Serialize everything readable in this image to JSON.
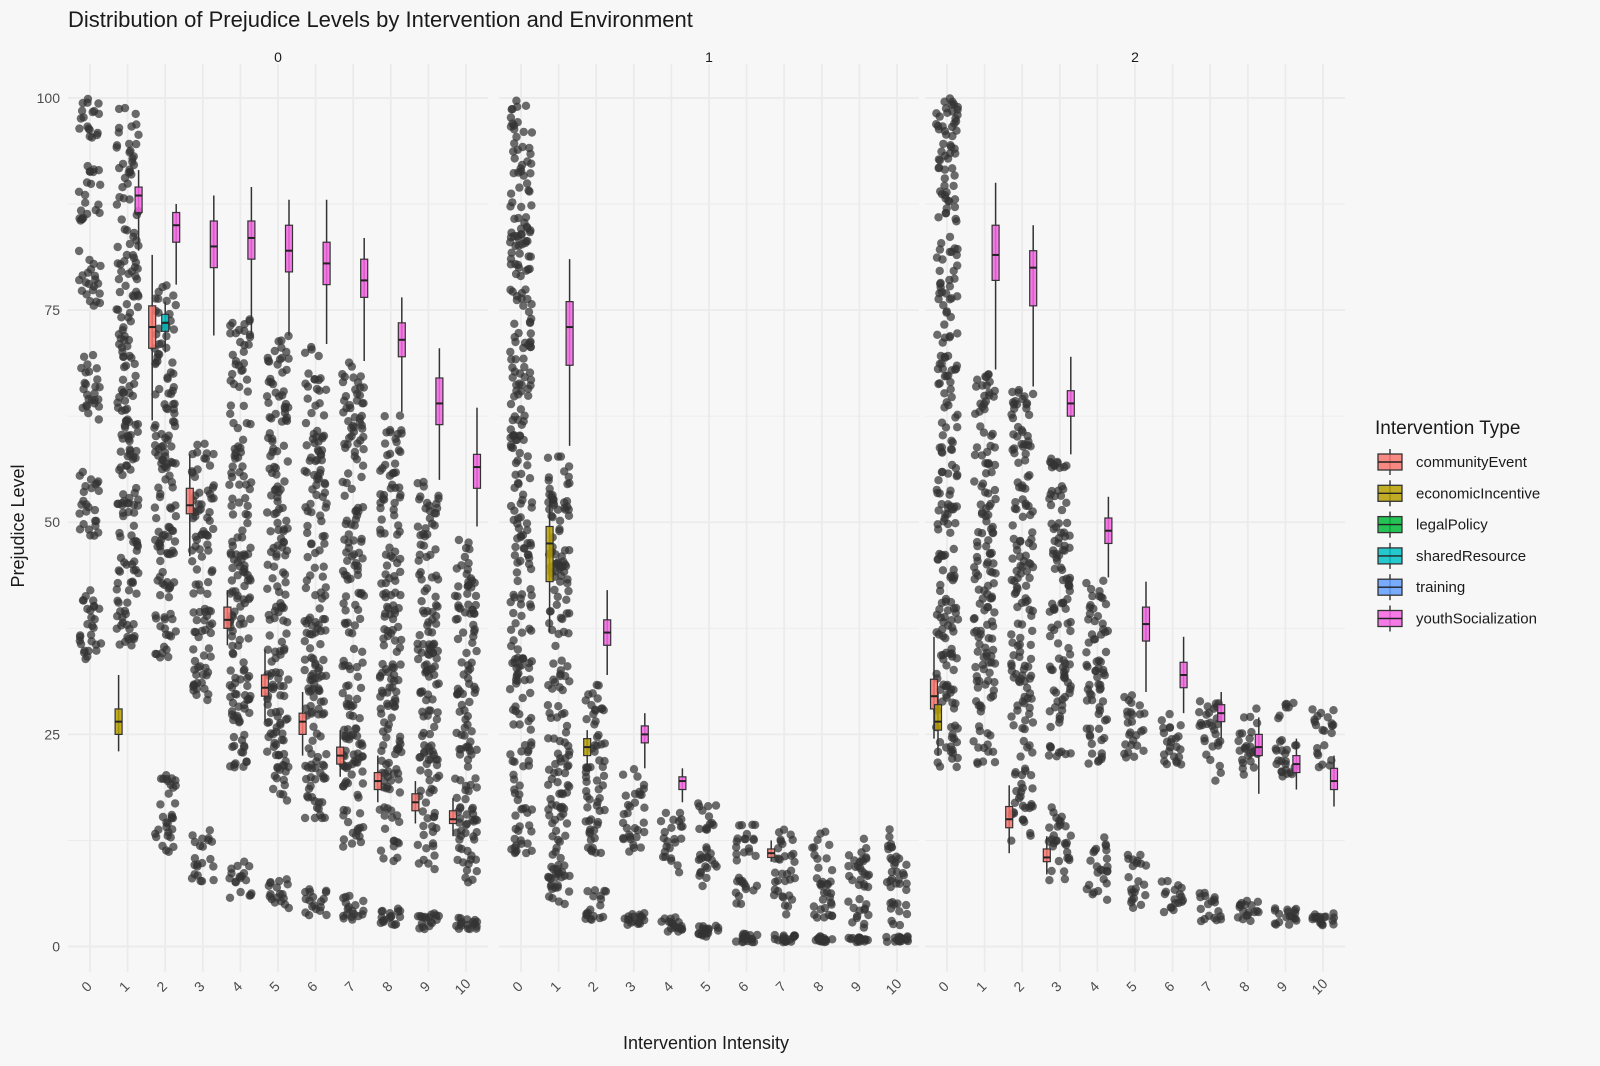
{
  "chart_data": {
    "type": "box",
    "title": "Distribution of Prejudice Levels by Intervention and Environment",
    "xlabel": "Intervention Intensity",
    "ylabel": "Prejudice Level",
    "ylim": [
      -3,
      104
    ],
    "yticks": [
      0,
      25,
      50,
      75,
      100
    ],
    "x_categories": [
      "0",
      "1",
      "2",
      "3",
      "4",
      "5",
      "6",
      "7",
      "8",
      "9",
      "10"
    ],
    "grid": true,
    "legend": {
      "title": "Intervention Type",
      "placement": "right",
      "entries": [
        {
          "name": "communityEvent",
          "color": "#F8766D"
        },
        {
          "name": "economicIncentive",
          "color": "#B79F00"
        },
        {
          "name": "legalPolicy",
          "color": "#00BA38"
        },
        {
          "name": "sharedResource",
          "color": "#00BFC4"
        },
        {
          "name": "training",
          "color": "#619CFF"
        },
        {
          "name": "youthSocialization",
          "color": "#F564E3"
        }
      ]
    },
    "panels": [
      {
        "facet": "0",
        "boxes": [
          {
            "x": "1",
            "type": "economicIncentive",
            "q1": 25,
            "median": 26.5,
            "q3": 28,
            "lo": 23,
            "hi": 32
          },
          {
            "x": "1",
            "type": "youthSocialization",
            "q1": 86.5,
            "median": 88.5,
            "q3": 89.5,
            "lo": 82,
            "hi": 91.5
          },
          {
            "x": "2",
            "type": "communityEvent",
            "q1": 70.5,
            "median": 73,
            "q3": 75.5,
            "lo": 62,
            "hi": 81.5
          },
          {
            "x": "2",
            "type": "sharedResource",
            "q1": 72.5,
            "median": 73.5,
            "q3": 74.5,
            "lo": 70,
            "hi": 76
          },
          {
            "x": "2",
            "type": "youthSocialization",
            "q1": 83,
            "median": 85,
            "q3": 86.5,
            "lo": 78,
            "hi": 87.5
          },
          {
            "x": "3",
            "type": "communityEvent",
            "q1": 51,
            "median": 52,
            "q3": 54,
            "lo": 46,
            "hi": 58
          },
          {
            "x": "3",
            "type": "youthSocialization",
            "q1": 80,
            "median": 82.5,
            "q3": 85.5,
            "lo": 72,
            "hi": 88.5
          },
          {
            "x": "4",
            "type": "communityEvent",
            "q1": 37.5,
            "median": 38.5,
            "q3": 40,
            "lo": 35.5,
            "hi": 42
          },
          {
            "x": "4",
            "type": "youthSocialization",
            "q1": 81,
            "median": 83.5,
            "q3": 85.5,
            "lo": 72,
            "hi": 89.5
          },
          {
            "x": "5",
            "type": "communityEvent",
            "q1": 29.5,
            "median": 30.5,
            "q3": 32,
            "lo": 26.5,
            "hi": 35
          },
          {
            "x": "5",
            "type": "youthSocialization",
            "q1": 79.5,
            "median": 82,
            "q3": 85,
            "lo": 72,
            "hi": 88
          },
          {
            "x": "6",
            "type": "communityEvent",
            "q1": 25,
            "median": 26.5,
            "q3": 27.5,
            "lo": 22.5,
            "hi": 30
          },
          {
            "x": "6",
            "type": "youthSocialization",
            "q1": 78,
            "median": 80.5,
            "q3": 83,
            "lo": 71,
            "hi": 88
          },
          {
            "x": "7",
            "type": "communityEvent",
            "q1": 21.5,
            "median": 22.5,
            "q3": 23.5,
            "lo": 20,
            "hi": 25.5
          },
          {
            "x": "7",
            "type": "youthSocialization",
            "q1": 76.5,
            "median": 78.5,
            "q3": 81,
            "lo": 69,
            "hi": 83.5
          },
          {
            "x": "8",
            "type": "communityEvent",
            "q1": 18.5,
            "median": 19.5,
            "q3": 20.5,
            "lo": 17,
            "hi": 22.5
          },
          {
            "x": "8",
            "type": "youthSocialization",
            "q1": 69.5,
            "median": 71.5,
            "q3": 73.5,
            "lo": 63,
            "hi": 76.5
          },
          {
            "x": "9",
            "type": "communityEvent",
            "q1": 16,
            "median": 17,
            "q3": 18,
            "lo": 14.5,
            "hi": 19.5
          },
          {
            "x": "9",
            "type": "youthSocialization",
            "q1": 61.5,
            "median": 64,
            "q3": 67,
            "lo": 55,
            "hi": 70.5
          },
          {
            "x": "10",
            "type": "communityEvent",
            "q1": 14.5,
            "median": 15,
            "q3": 16,
            "lo": 13,
            "hi": 17.5
          },
          {
            "x": "10",
            "type": "youthSocialization",
            "q1": 54,
            "median": 56.5,
            "q3": 58,
            "lo": 49.5,
            "hi": 63.5
          }
        ],
        "point_clusters": [
          {
            "x": 0,
            "lo": 32,
            "hi": 100,
            "groups": [
              [
                95,
                100
              ],
              [
                85,
                92
              ],
              [
                75,
                82
              ],
              [
                62,
                70
              ],
              [
                48,
                56
              ],
              [
                33,
                42
              ]
            ]
          },
          {
            "x": 1,
            "lo": 30,
            "hi": 99,
            "groups": [
              [
                35,
                99
              ]
            ]
          },
          {
            "x": 2,
            "lo": 11,
            "hi": 78,
            "groups": [
              [
                34,
                78
              ],
              [
                11,
                21
              ]
            ]
          },
          {
            "x": 3,
            "lo": 7,
            "hi": 60,
            "groups": [
              [
                29,
                60
              ],
              [
                7,
                14
              ]
            ]
          },
          {
            "x": 4,
            "lo": 5.5,
            "hi": 74,
            "groups": [
              [
                21,
                74
              ],
              [
                5.5,
                10
              ]
            ]
          },
          {
            "x": 5,
            "lo": 4.5,
            "hi": 72,
            "groups": [
              [
                16.5,
                72
              ],
              [
                4.5,
                8
              ]
            ]
          },
          {
            "x": 6,
            "lo": 3.5,
            "hi": 71,
            "groups": [
              [
                15,
                71
              ],
              [
                3.5,
                7
              ]
            ]
          },
          {
            "x": 7,
            "lo": 3,
            "hi": 69,
            "groups": [
              [
                11.5,
                69
              ],
              [
                3,
                6
              ]
            ]
          },
          {
            "x": 8,
            "lo": 2.5,
            "hi": 63,
            "groups": [
              [
                10,
                63
              ],
              [
                2.5,
                4.5
              ]
            ]
          },
          {
            "x": 9,
            "lo": 2,
            "hi": 55,
            "groups": [
              [
                9,
                55
              ],
              [
                2,
                4
              ]
            ]
          },
          {
            "x": 10,
            "lo": 2,
            "hi": 49,
            "groups": [
              [
                7.5,
                49
              ],
              [
                2,
                3.5
              ]
            ]
          }
        ]
      },
      {
        "facet": "1",
        "boxes": [
          {
            "x": "1",
            "type": "economicIncentive",
            "q1": 43,
            "median": 47.5,
            "q3": 49.5,
            "lo": 37,
            "hi": 53
          },
          {
            "x": "1",
            "type": "youthSocialization",
            "q1": 68.5,
            "median": 73,
            "q3": 76,
            "lo": 59,
            "hi": 81
          },
          {
            "x": "2",
            "type": "economicIncentive",
            "q1": 22.5,
            "median": 23.5,
            "q3": 24.5,
            "lo": 21.5,
            "hi": 25.5
          },
          {
            "x": "2",
            "type": "youthSocialization",
            "q1": 35.5,
            "median": 37,
            "q3": 38.5,
            "lo": 32,
            "hi": 42
          },
          {
            "x": "3",
            "type": "youthSocialization",
            "q1": 24,
            "median": 25,
            "q3": 26,
            "lo": 21,
            "hi": 27.5
          },
          {
            "x": "4",
            "type": "youthSocialization",
            "q1": 18.5,
            "median": 19.5,
            "q3": 20,
            "lo": 17,
            "hi": 21
          },
          {
            "x": "7",
            "type": "communityEvent",
            "q1": 10.5,
            "median": 11,
            "q3": 11.5,
            "lo": 10,
            "hi": 12.5
          }
        ],
        "point_clusters": [
          {
            "x": 0,
            "lo": 11,
            "hi": 100,
            "groups": [
              [
                11,
                100
              ]
            ]
          },
          {
            "x": 1,
            "lo": 5,
            "hi": 58,
            "groups": [
              [
                8,
                58
              ],
              [
                5,
                9
              ]
            ]
          },
          {
            "x": 2,
            "lo": 3,
            "hi": 31,
            "groups": [
              [
                11,
                31
              ],
              [
                3,
                7
              ]
            ]
          },
          {
            "x": 3,
            "lo": 2.5,
            "hi": 21,
            "groups": [
              [
                11,
                21
              ],
              [
                2.5,
                4
              ]
            ]
          },
          {
            "x": 4,
            "lo": 1.5,
            "hi": 16,
            "groups": [
              [
                8.5,
                16
              ],
              [
                1.5,
                3.5
              ]
            ]
          },
          {
            "x": 5,
            "lo": 1,
            "hi": 17,
            "groups": [
              [
                7,
                17
              ],
              [
                1,
                2.5
              ]
            ]
          },
          {
            "x": 6,
            "lo": 0.5,
            "hi": 14.5,
            "groups": [
              [
                4.5,
                14.5
              ],
              [
                0.5,
                1.5
              ]
            ]
          },
          {
            "x": 7,
            "lo": 0.5,
            "hi": 14,
            "groups": [
              [
                3.5,
                14
              ],
              [
                0.5,
                1.5
              ]
            ]
          },
          {
            "x": 8,
            "lo": 0.5,
            "hi": 14,
            "groups": [
              [
                3,
                14
              ],
              [
                0.5,
                1.2
              ]
            ]
          },
          {
            "x": 9,
            "lo": 0.5,
            "hi": 14,
            "groups": [
              [
                2,
                14
              ],
              [
                0.5,
                1.2
              ]
            ]
          },
          {
            "x": 10,
            "lo": 0.5,
            "hi": 14,
            "groups": [
              [
                2,
                14
              ],
              [
                0.5,
                1.2
              ]
            ]
          }
        ]
      },
      {
        "facet": "2",
        "boxes": [
          {
            "x": "0",
            "type": "communityEvent",
            "q1": 28,
            "median": 29.5,
            "q3": 31.5,
            "lo": 24.5,
            "hi": 36.5
          },
          {
            "x": "0",
            "type": "economicIncentive",
            "q1": 25.5,
            "median": 26.5,
            "q3": 28.5,
            "lo": 22.5,
            "hi": 30
          },
          {
            "x": "1",
            "type": "youthSocialization",
            "q1": 78.5,
            "median": 81.5,
            "q3": 85,
            "lo": 68,
            "hi": 90
          },
          {
            "x": "2",
            "type": "communityEvent",
            "q1": 14,
            "median": 15,
            "q3": 16.5,
            "lo": 11,
            "hi": 19
          },
          {
            "x": "2",
            "type": "youthSocialization",
            "q1": 75.5,
            "median": 80,
            "q3": 82,
            "lo": 66,
            "hi": 85
          },
          {
            "x": "3",
            "type": "communityEvent",
            "q1": 10,
            "median": 10.5,
            "q3": 11.5,
            "lo": 8.5,
            "hi": 13
          },
          {
            "x": "3",
            "type": "youthSocialization",
            "q1": 62.5,
            "median": 64,
            "q3": 65.5,
            "lo": 58,
            "hi": 69.5
          },
          {
            "x": "4",
            "type": "youthSocialization",
            "q1": 47.5,
            "median": 49,
            "q3": 50.5,
            "lo": 43.5,
            "hi": 53
          },
          {
            "x": "5",
            "type": "youthSocialization",
            "q1": 36,
            "median": 38,
            "q3": 40,
            "lo": 30,
            "hi": 43
          },
          {
            "x": "6",
            "type": "youthSocialization",
            "q1": 30.5,
            "median": 32,
            "q3": 33.5,
            "lo": 27.5,
            "hi": 36.5
          },
          {
            "x": "7",
            "type": "youthSocialization",
            "q1": 26.5,
            "median": 27.5,
            "q3": 28.5,
            "lo": 24.5,
            "hi": 30
          },
          {
            "x": "8",
            "type": "youthSocialization",
            "q1": 22.5,
            "median": 23.5,
            "q3": 25,
            "lo": 18,
            "hi": 27
          },
          {
            "x": "9",
            "type": "youthSocialization",
            "q1": 20.5,
            "median": 21.5,
            "q3": 22.5,
            "lo": 18.5,
            "hi": 24.5
          },
          {
            "x": "10",
            "type": "youthSocialization",
            "q1": 18.5,
            "median": 19.5,
            "q3": 21,
            "lo": 16.5,
            "hi": 22.5
          }
        ],
        "point_clusters": [
          {
            "x": 0,
            "lo": 21,
            "hi": 100,
            "groups": [
              [
                21,
                100
              ]
            ]
          },
          {
            "x": 1,
            "lo": 21.5,
            "hi": 68,
            "groups": [
              [
                21.5,
                68
              ]
            ]
          },
          {
            "x": 2,
            "lo": 12,
            "hi": 66,
            "groups": [
              [
                22,
                66
              ],
              [
                12,
                21
              ]
            ]
          },
          {
            "x": 3,
            "lo": 7,
            "hi": 57.5,
            "groups": [
              [
                22,
                57.5
              ],
              [
                7,
                16.5
              ]
            ]
          },
          {
            "x": 4,
            "lo": 5.5,
            "hi": 43.5,
            "groups": [
              [
                21.5,
                43.5
              ],
              [
                5.5,
                13
              ]
            ]
          },
          {
            "x": 5,
            "lo": 4,
            "hi": 30,
            "groups": [
              [
                21.5,
                30
              ],
              [
                4,
                11
              ]
            ]
          },
          {
            "x": 6,
            "lo": 4,
            "hi": 28.5,
            "groups": [
              [
                21,
                28.5
              ],
              [
                4,
                8
              ]
            ]
          },
          {
            "x": 7,
            "lo": 3,
            "hi": 29,
            "groups": [
              [
                19.5,
                29
              ],
              [
                3,
                6.5
              ]
            ]
          },
          {
            "x": 8,
            "lo": 3,
            "hi": 28.5,
            "groups": [
              [
                20,
                28.5
              ],
              [
                3,
                5.5
              ]
            ]
          },
          {
            "x": 9,
            "lo": 2.5,
            "hi": 29,
            "groups": [
              [
                20,
                29
              ],
              [
                2.5,
                4.5
              ]
            ]
          },
          {
            "x": 10,
            "lo": 2.5,
            "hi": 28,
            "groups": [
              [
                21,
                28
              ],
              [
                2.5,
                4
              ]
            ]
          }
        ]
      }
    ]
  }
}
